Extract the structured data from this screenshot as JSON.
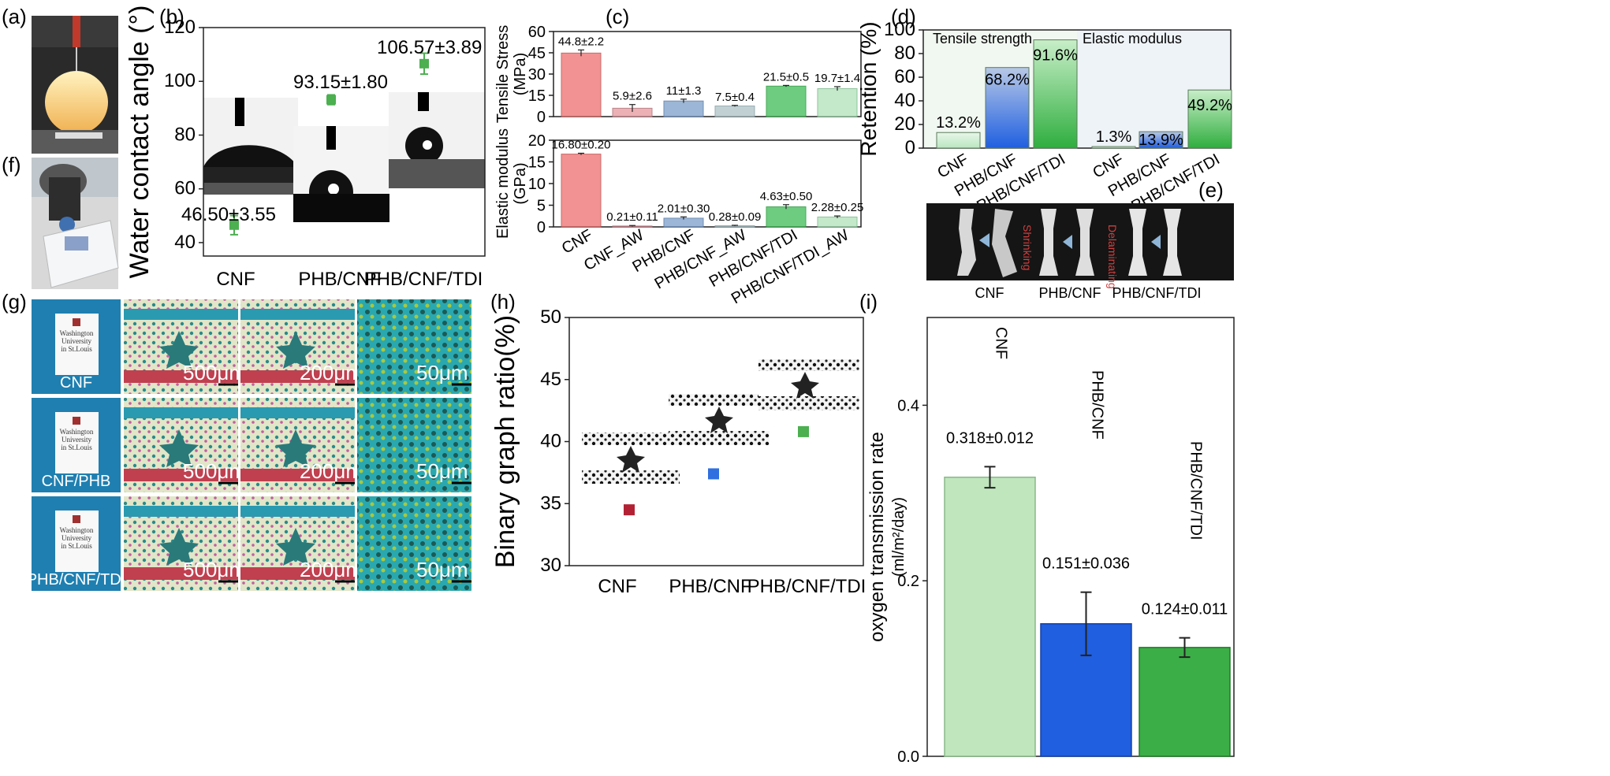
{
  "panels": {
    "a": {
      "label": "(a)"
    },
    "b": {
      "label": "(b)"
    },
    "c": {
      "label": "(c)"
    },
    "d": {
      "label": "(d)"
    },
    "e": {
      "label": "(e)",
      "categories": [
        "CNF",
        "PHB/CNF",
        "PHB/CNF/TDI"
      ],
      "annotations": [
        "Shrinking",
        "Delaminating"
      ]
    },
    "f": {
      "label": "(f)"
    },
    "g": {
      "label": "(g)",
      "rows": [
        "CNF",
        "CNF/PHB",
        "PHB/CNF/TDI"
      ],
      "scale_bars": [
        "500μm",
        "200μm",
        "50μm"
      ],
      "logo_text": [
        "Washington",
        "University",
        "in St.Louis"
      ]
    },
    "h": {
      "label": "(h)"
    },
    "i": {
      "label": "(i)"
    }
  },
  "colors": {
    "green_marker": "#4caf50",
    "red_bar": "#f08080",
    "pink_bar": "#e8a4a8",
    "blue_bar": "#8aaad0",
    "gray_blue_bar": "#b7c8cc",
    "green_bar": "#55c46a",
    "light_green_bar": "#b9e6c1",
    "blue_strong": "#1f5fe0",
    "green_strong": "#3cae47",
    "dark_red_marker": "#b22234"
  },
  "chart_data": [
    {
      "panel": "b",
      "type": "scatter",
      "ylabel": "Water contact angle (°)",
      "ylim": [
        35,
        120
      ],
      "yticks": [
        40,
        60,
        80,
        100,
        120
      ],
      "categories": [
        "CNF",
        "PHB/CNF",
        "PHB/CNF/TDI"
      ],
      "values": [
        46.5,
        93.15,
        106.57
      ],
      "errors": [
        3.55,
        1.8,
        3.89
      ],
      "labels": [
        "46.50±3.55",
        "93.15±1.80",
        "106.57±3.89"
      ]
    },
    {
      "panel": "c-top",
      "type": "bar",
      "ylabel": "Tensile Stress (MPa)",
      "ylim": [
        0,
        60
      ],
      "yticks": [
        0,
        15,
        30,
        45,
        60
      ],
      "categories": [
        "CNF",
        "CNF_AW",
        "PHB/CNF",
        "PHB/CNF_AW",
        "PHB/CNF/TDI",
        "PHB/CNF/TDI_AW"
      ],
      "values": [
        44.8,
        5.9,
        11,
        7.5,
        21.5,
        19.7
      ],
      "errors": [
        2.2,
        2.6,
        1.3,
        0.4,
        0.5,
        1.4
      ],
      "labels": [
        "44.8±2.2",
        "5.9±2.6",
        "11±1.3",
        "7.5±0.4",
        "21.5±0.5",
        "19.7±1.4"
      ]
    },
    {
      "panel": "c-bottom",
      "type": "bar",
      "ylabel": "Elastic modulus (GPa)",
      "ylim": [
        0,
        20
      ],
      "yticks": [
        0,
        5,
        10,
        15,
        20
      ],
      "categories": [
        "CNF",
        "CNF_AW",
        "PHB/CNF",
        "PHB/CNF_AW",
        "PHB/CNF/TDI",
        "PHB/CNF/TDI_AW"
      ],
      "values": [
        16.8,
        0.21,
        2.01,
        0.28,
        4.63,
        2.28
      ],
      "errors": [
        0.2,
        0.11,
        0.3,
        0.09,
        0.5,
        0.25
      ],
      "labels": [
        "16.80±0.20",
        "0.21±0.11",
        "2.01±0.30",
        "0.28±0.09",
        "4.63±0.50",
        "2.28±0.25"
      ]
    },
    {
      "panel": "d",
      "type": "bar",
      "ylabel": "Retention (%)",
      "ylim": [
        0,
        100
      ],
      "yticks": [
        0,
        20,
        40,
        60,
        80,
        100
      ],
      "groups": [
        "Tensile strength",
        "Elastic modulus"
      ],
      "categories": [
        "CNF",
        "PHB/CNF",
        "PHB/CNF/TDI",
        "CNF",
        "PHB/CNF",
        "PHB/CNF/TDI"
      ],
      "values": [
        13.2,
        68.2,
        91.6,
        1.3,
        13.9,
        49.2
      ],
      "labels": [
        "13.2%",
        "68.2%",
        "91.6%",
        "1.3%",
        "13.9%",
        "49.2%"
      ]
    },
    {
      "panel": "h",
      "type": "scatter",
      "ylabel": "Binary graph ratio(%)",
      "ylim": [
        30,
        50
      ],
      "yticks": [
        30,
        35,
        40,
        45,
        50
      ],
      "categories": [
        "CNF",
        "PHB/CNF",
        "PHB/CNF/TDI"
      ],
      "values": [
        34.5,
        37.4,
        40.8
      ]
    },
    {
      "panel": "i",
      "type": "bar",
      "ylabel": "oxygen transmission rate (ml/m²/day)",
      "ylim": [
        0,
        0.5
      ],
      "yticks": [
        0.0,
        0.2,
        0.4
      ],
      "categories": [
        "CNF",
        "PHB/CNF",
        "PHB/CNF/TDI"
      ],
      "values": [
        0.318,
        0.151,
        0.124
      ],
      "errors": [
        0.012,
        0.036,
        0.011
      ],
      "labels": [
        "0.318±0.012",
        "0.151±0.036",
        "0.124±0.011"
      ]
    }
  ]
}
